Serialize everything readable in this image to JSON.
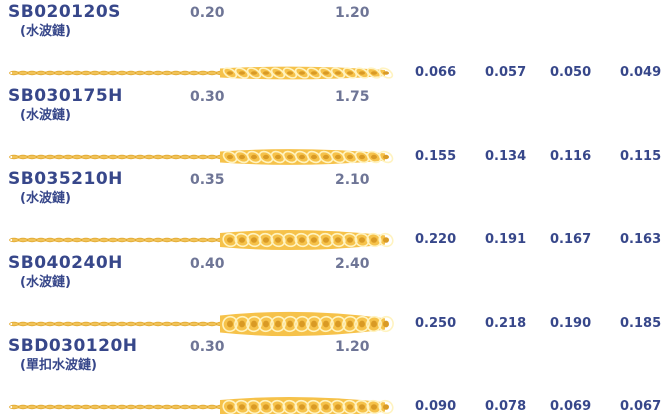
{
  "items": [
    {
      "code": "SB020120S",
      "name": "(水波鏈)",
      "size1": "0.20",
      "size2": "1.20",
      "weights": [
        "0.066",
        "0.057",
        "0.050",
        "0.049"
      ]
    },
    {
      "code": "SB030175H",
      "name": "(水波鏈)",
      "size1": "0.30",
      "size2": "1.75",
      "weights": [
        "0.155",
        "0.134",
        "0.116",
        "0.115"
      ]
    },
    {
      "code": "SB035210H",
      "name": "(水波鏈)",
      "size1": "0.35",
      "size2": "2.10",
      "weights": [
        "0.220",
        "0.191",
        "0.167",
        "0.163"
      ]
    },
    {
      "code": "SB040240H",
      "name": "(水波鏈)",
      "size1": "0.40",
      "size2": "2.40",
      "weights": [
        "0.250",
        "0.218",
        "0.190",
        "0.185"
      ]
    },
    {
      "code": "SBD030120H",
      "name": "(單扣水波鏈)",
      "size1": "0.30",
      "size2": "1.20",
      "weights": [
        "0.090",
        "0.078",
        "0.069",
        "0.067"
      ]
    }
  ]
}
